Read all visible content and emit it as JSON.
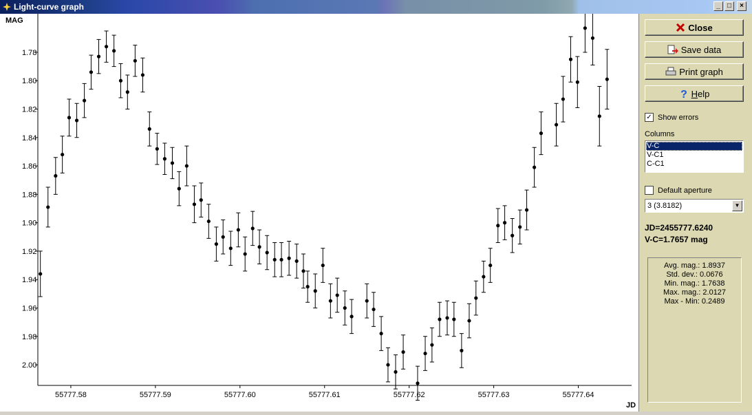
{
  "window": {
    "title": "Light-curve graph"
  },
  "chart_data": {
    "type": "scatter",
    "x_label": "JD",
    "y_label": "MAG",
    "color": "#000000",
    "error_bars": true,
    "grid": false,
    "xlim": [
      55777.5761,
      55777.6463
    ],
    "ylim": [
      2.0145,
      1.7529
    ],
    "xticks": [
      55777.58,
      55777.59,
      {
        "value": 55777.6,
        "label": "55777.60"
      },
      55777.61,
      55777.62,
      55777.63,
      55777.64
    ],
    "yticks": [
      1.78,
      {
        "value": 1.8,
        "label": "1.80"
      },
      1.82,
      1.84,
      1.86,
      1.88,
      {
        "value": 1.9,
        "label": "1.90"
      },
      1.92,
      1.94,
      1.96,
      1.98,
      {
        "value": 2,
        "label": "2.00"
      }
    ],
    "x": [
      55777.5764,
      55777.5773,
      55777.5782,
      55777.579,
      55777.5798,
      55777.5807,
      55777.5816,
      55777.5824,
      55777.5833,
      55777.5842,
      55777.5851,
      55777.5859,
      55777.5867,
      55777.5876,
      55777.5885,
      55777.5893,
      55777.5902,
      55777.5911,
      55777.592,
      55777.5928,
      55777.5937,
      55777.5946,
      55777.5954,
      55777.5963,
      55777.5972,
      55777.598,
      55777.5989,
      55777.5998,
      55777.6006,
      55777.6015,
      55777.6023,
      55777.6032,
      55777.6041,
      55777.6049,
      55777.6058,
      55777.6067,
      55777.6075,
      55777.608,
      55777.6089,
      55777.6098,
      55777.6107,
      55777.6115,
      55777.6124,
      55777.6132,
      55777.615,
      55777.6158,
      55777.6167,
      55777.6175,
      55777.6184,
      55777.6193,
      55777.621,
      55777.6219,
      55777.6227,
      55777.6236,
      55777.6245,
      55777.6253,
      55777.6262,
      55777.6271,
      55777.6279,
      55777.6288,
      55777.6296,
      55777.6305,
      55777.6313,
      55777.6322,
      55777.6331,
      55777.6339,
      55777.6348,
      55777.6356,
      55777.6374,
      55777.6382,
      55777.6391,
      55777.6399,
      55777.6408,
      55777.6417,
      55777.6425,
      55777.6434
    ],
    "values": [
      1.936,
      1.889,
      1.867,
      1.852,
      1.826,
      1.828,
      1.814,
      1.794,
      1.783,
      1.776,
      1.779,
      1.8,
      1.808,
      1.786,
      1.796,
      1.834,
      1.848,
      1.855,
      1.858,
      1.876,
      1.86,
      1.887,
      1.884,
      1.899,
      1.915,
      1.91,
      1.918,
      1.905,
      1.922,
      1.904,
      1.917,
      1.921,
      1.926,
      1.926,
      1.925,
      1.927,
      1.934,
      1.945,
      1.948,
      1.93,
      1.955,
      1.951,
      1.96,
      1.966,
      1.955,
      1.961,
      1.978,
      2.0,
      2.005,
      1.991,
      2.013,
      1.992,
      1.986,
      1.968,
      1.967,
      1.968,
      1.99,
      1.969,
      1.953,
      1.938,
      1.93,
      1.902,
      1.9,
      1.909,
      1.903,
      1.891,
      1.861,
      1.837,
      1.831,
      1.813,
      1.785,
      1.801,
      1.763,
      1.77,
      1.825,
      1.799
    ],
    "errors": [
      0.016,
      0.014,
      0.013,
      0.013,
      0.013,
      0.012,
      0.012,
      0.012,
      0.012,
      0.011,
      0.011,
      0.012,
      0.012,
      0.011,
      0.012,
      0.012,
      0.011,
      0.011,
      0.011,
      0.012,
      0.014,
      0.013,
      0.012,
      0.012,
      0.012,
      0.012,
      0.012,
      0.012,
      0.012,
      0.012,
      0.012,
      0.012,
      0.012,
      0.012,
      0.012,
      0.012,
      0.012,
      0.011,
      0.012,
      0.012,
      0.012,
      0.012,
      0.012,
      0.012,
      0.012,
      0.012,
      0.012,
      0.012,
      0.012,
      0.012,
      0.012,
      0.012,
      0.012,
      0.012,
      0.012,
      0.012,
      0.012,
      0.012,
      0.012,
      0.011,
      0.012,
      0.012,
      0.012,
      0.012,
      0.012,
      0.014,
      0.014,
      0.015,
      0.015,
      0.016,
      0.016,
      0.018,
      0.017,
      0.019,
      0.021,
      0.021
    ]
  },
  "sidebar": {
    "buttons": [
      "Close",
      "Save data",
      "Print graph",
      "Help"
    ],
    "show_errors": {
      "label": "Show errors",
      "checked": true
    },
    "columns": {
      "label": "Columns",
      "items": [
        "V-C",
        "V-C1",
        "C-C1"
      ],
      "selected": 0
    },
    "default_aperture": {
      "label": "Default aperture",
      "checked": false
    },
    "aperture": "3 (3.8182)",
    "readout": [
      "JD=2455777.6240",
      "V-C=1.7657 mag"
    ],
    "stats": [
      "Avg. mag.: 1.8937",
      "Std. dev.: 0.0676",
      "Min. mag.: 1.7638",
      "Max. mag.: 2.0127",
      "Max - Min: 0.2489"
    ]
  }
}
